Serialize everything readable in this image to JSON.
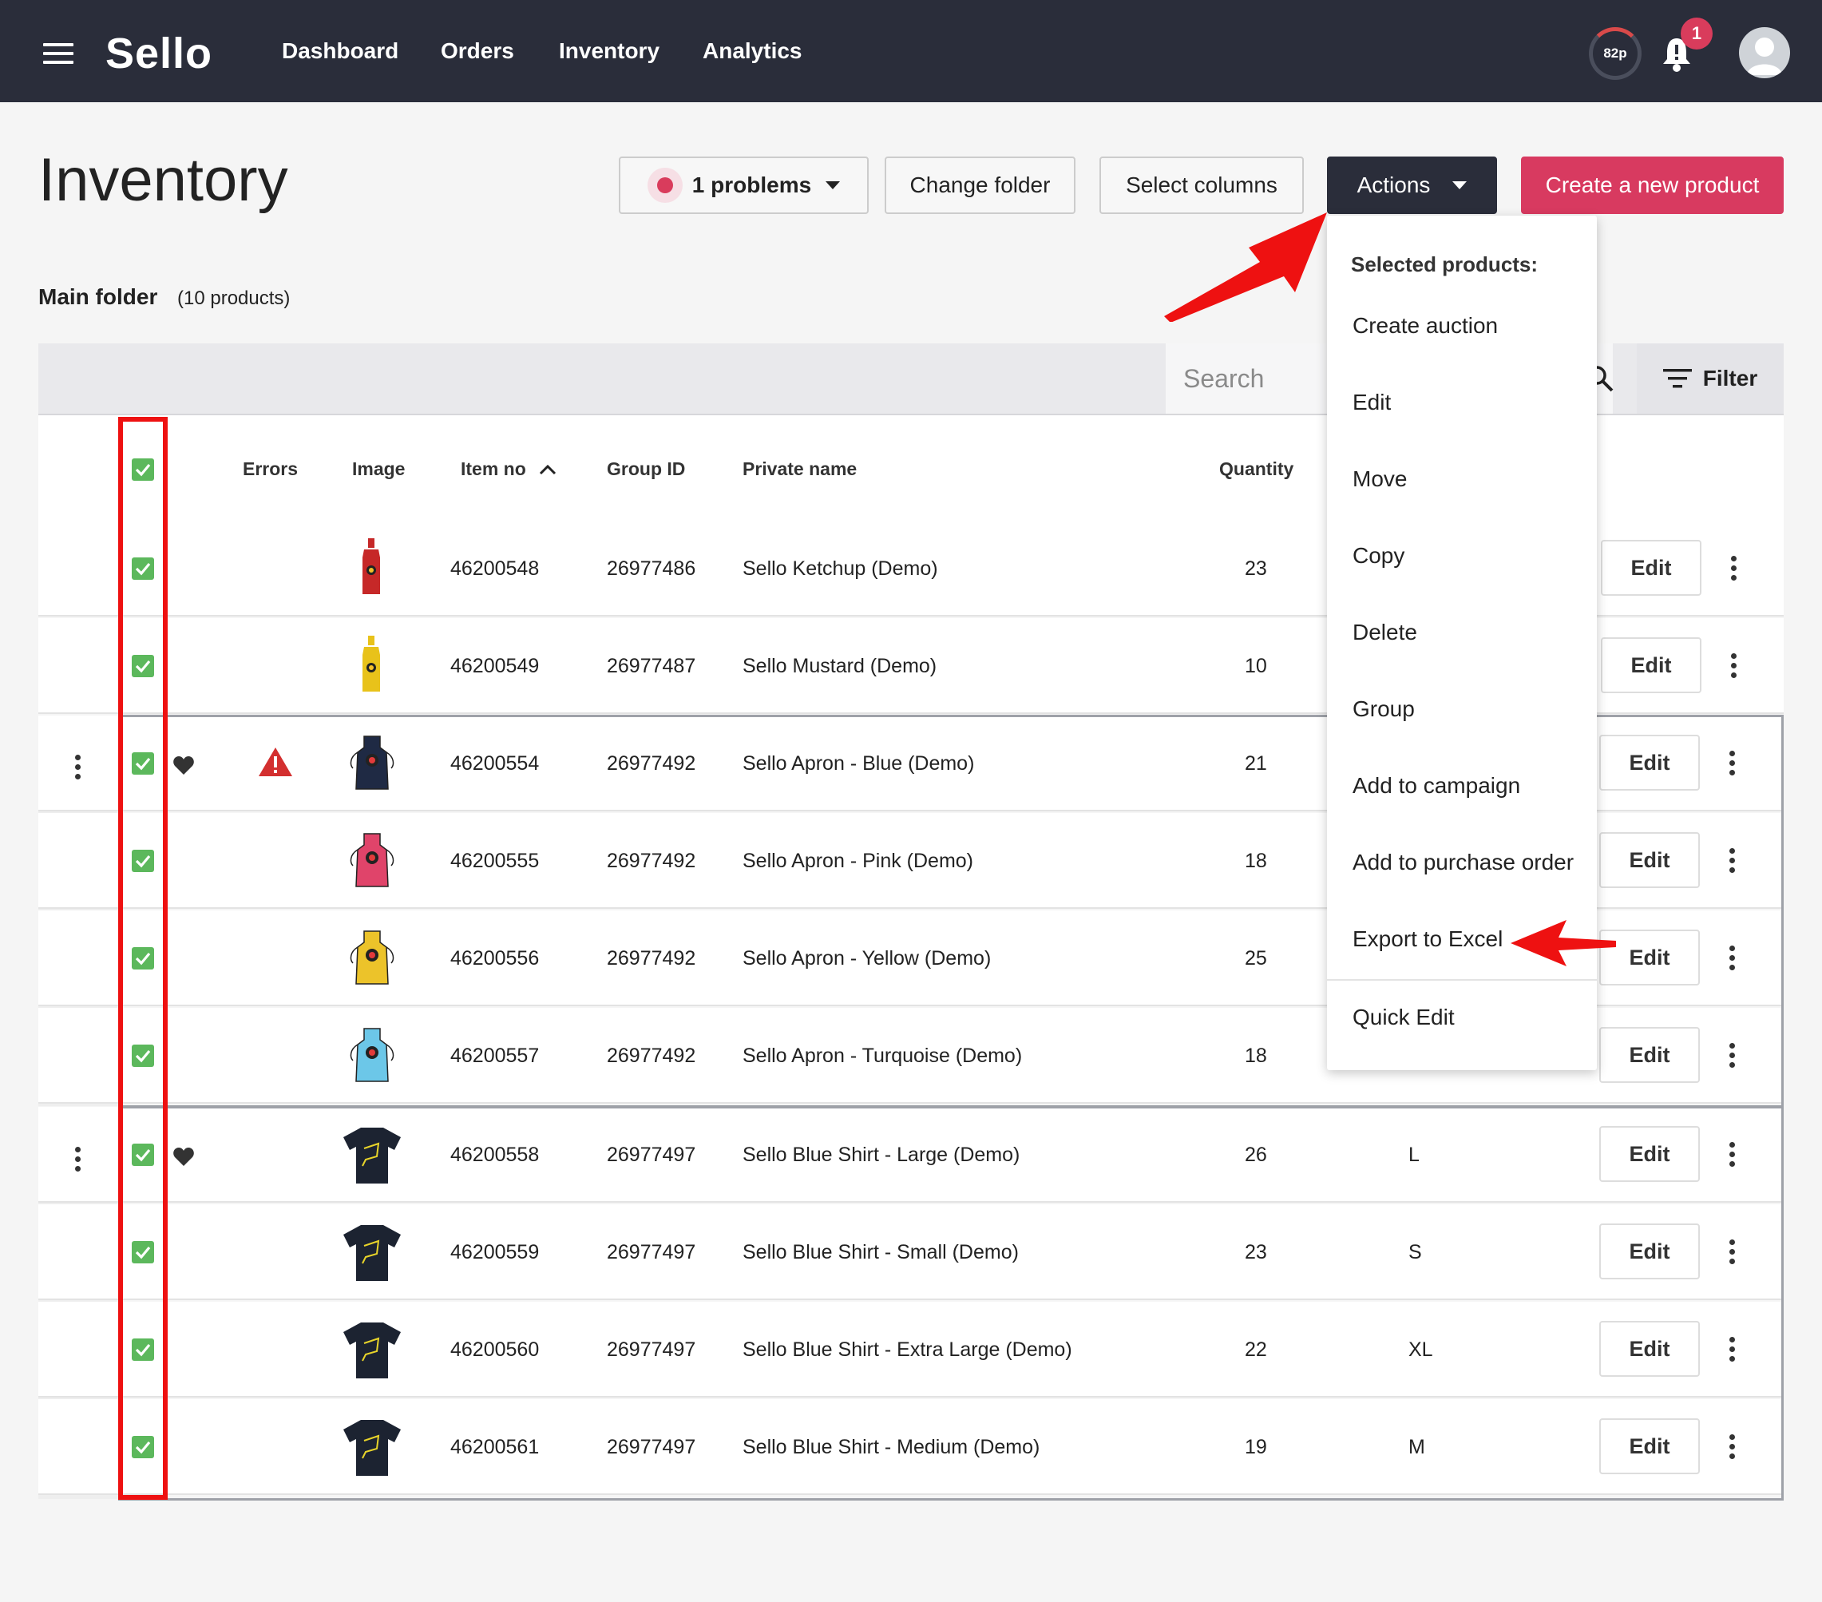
{
  "nav": {
    "logo": "Sello",
    "links": [
      "Dashboard",
      "Orders",
      "Inventory",
      "Analytics"
    ],
    "credits": "82p",
    "notifications": "1"
  },
  "header": {
    "title": "Inventory",
    "problems": "1 problems",
    "change_folder": "Change folder",
    "select_columns": "Select columns",
    "actions": "Actions",
    "create": "Create a new product"
  },
  "folder": {
    "name": "Main folder",
    "count": "(10 products)"
  },
  "toolbar": {
    "search_placeholder": "Search",
    "filter": "Filter"
  },
  "columns": [
    "Errors",
    "Image",
    "Item no",
    "Group ID",
    "Private name",
    "Quantity"
  ],
  "rows": [
    {
      "item": "46200548",
      "group": "26977486",
      "name": "Sello Ketchup (Demo)",
      "qty": "23",
      "size": "",
      "edit": "Edit"
    },
    {
      "item": "46200549",
      "group": "26977487",
      "name": "Sello Mustard (Demo)",
      "qty": "10",
      "size": "",
      "edit": "Edit"
    },
    {
      "item": "46200554",
      "group": "26977492",
      "name": "Sello Apron - Blue (Demo)",
      "qty": "21",
      "size": "",
      "edit": "Edit"
    },
    {
      "item": "46200555",
      "group": "26977492",
      "name": "Sello Apron - Pink (Demo)",
      "qty": "18",
      "size": "",
      "edit": "Edit"
    },
    {
      "item": "46200556",
      "group": "26977492",
      "name": "Sello Apron - Yellow (Demo)",
      "qty": "25",
      "size": "",
      "edit": "Edit"
    },
    {
      "item": "46200557",
      "group": "26977492",
      "name": "Sello Apron - Turquoise (Demo)",
      "qty": "18",
      "size": "",
      "edit": "Edit"
    },
    {
      "item": "46200558",
      "group": "26977497",
      "name": "Sello Blue Shirt - Large (Demo)",
      "qty": "26",
      "size": "L",
      "edit": "Edit"
    },
    {
      "item": "46200559",
      "group": "26977497",
      "name": "Sello Blue Shirt - Small (Demo)",
      "qty": "23",
      "size": "S",
      "edit": "Edit"
    },
    {
      "item": "46200560",
      "group": "26977497",
      "name": "Sello Blue Shirt - Extra Large (Demo)",
      "qty": "22",
      "size": "XL",
      "edit": "Edit"
    },
    {
      "item": "46200561",
      "group": "26977497",
      "name": "Sello Blue Shirt - Medium (Demo)",
      "qty": "19",
      "size": "M",
      "edit": "Edit"
    }
  ],
  "dropdown": {
    "header": "Selected products:",
    "items": [
      "Create auction",
      "Edit",
      "Move",
      "Copy",
      "Delete",
      "Group",
      "Add to campaign",
      "Add to purchase order",
      "Export to Excel",
      "Quick Edit"
    ]
  },
  "colors": {
    "nav": "#2a2d3a",
    "accent": "#d83a60",
    "check": "#5cb85c",
    "annotation": "#ee1111"
  }
}
